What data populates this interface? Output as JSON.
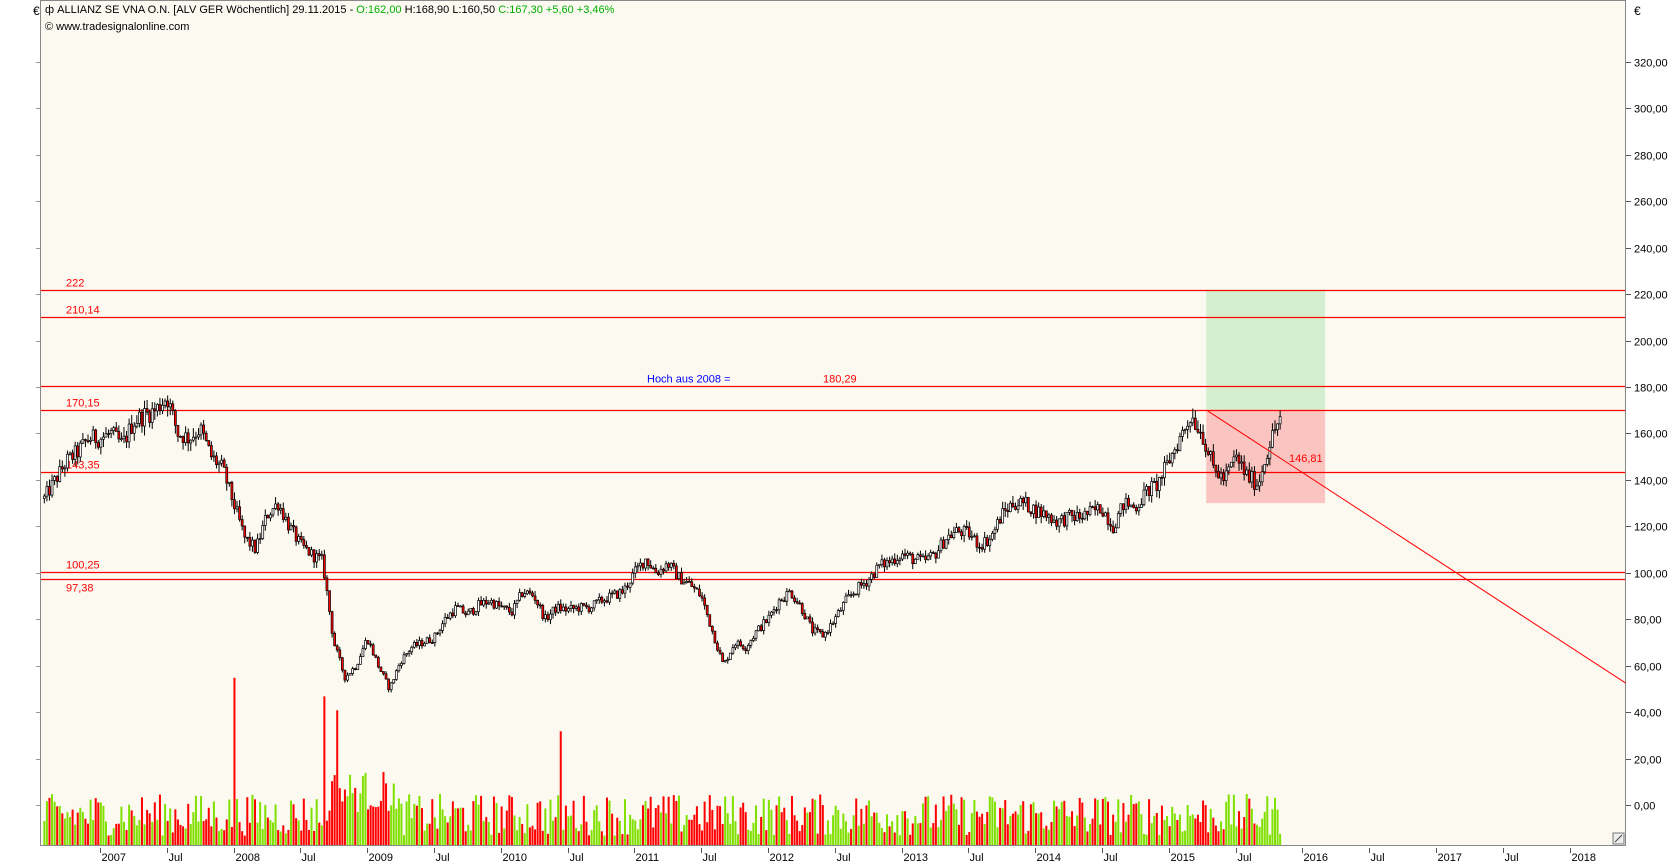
{
  "header": {
    "symbol_icon": "candlestick-icon",
    "title": "ALLIANZ SE VNA O.N. [ALV GER  Wöchentlich] 29.11.2015 - ",
    "open": "O:162,00",
    "high_low": " H:168,90 L:160,50 ",
    "close_change": "C:167,30 +5,60 +3,46%",
    "source_icon": "copyright-icon",
    "source": "www.tradesignalonline.com"
  },
  "axis": {
    "currency_left": "€",
    "currency_right": "€"
  },
  "colors": {
    "background": "#fcf9f1",
    "up_candle": "#ffffff",
    "down_candle": "#ff0000",
    "lines": "#ff0000",
    "note": "#0000ff",
    "target_zone": "#d4efcf",
    "risk_zone": "#fac5c0",
    "volume_up": "#80e000",
    "volume_down": "#ff0000"
  },
  "chart_data": {
    "type": "candlestick",
    "title": "ALLIANZ SE VNA O.N. [ALV GER  Wöchentlich]",
    "x_start": "2006-08",
    "x_end": "2018-05",
    "ylim": [
      -17,
      345
    ],
    "grid": false,
    "y_ticks": [
      "0,00",
      "20,00",
      "40,00",
      "60,00",
      "80,00",
      "100,00",
      "120,00",
      "140,00",
      "160,00",
      "180,00",
      "200,00",
      "220,00",
      "240,00",
      "260,00",
      "280,00",
      "300,00",
      "320,00"
    ],
    "y_tick_values": [
      0,
      20,
      40,
      60,
      80,
      100,
      120,
      140,
      160,
      180,
      200,
      220,
      240,
      260,
      280,
      300,
      320
    ],
    "x_ticks": [
      {
        "label": "2007",
        "t": 2007.0
      },
      {
        "label": "Jul",
        "t": 2007.5
      },
      {
        "label": "2008",
        "t": 2008.0
      },
      {
        "label": "Jul",
        "t": 2008.5
      },
      {
        "label": "2009",
        "t": 2009.0
      },
      {
        "label": "Jul",
        "t": 2009.5
      },
      {
        "label": "2010",
        "t": 2010.0
      },
      {
        "label": "Jul",
        "t": 2010.5
      },
      {
        "label": "2011",
        "t": 2011.0
      },
      {
        "label": "Jul",
        "t": 2011.5
      },
      {
        "label": "2012",
        "t": 2012.0
      },
      {
        "label": "Jul",
        "t": 2012.5
      },
      {
        "label": "2013",
        "t": 2013.0
      },
      {
        "label": "Jul",
        "t": 2013.5
      },
      {
        "label": "2014",
        "t": 2014.0
      },
      {
        "label": "Jul",
        "t": 2014.5
      },
      {
        "label": "2015",
        "t": 2015.0
      },
      {
        "label": "Jul",
        "t": 2015.5
      },
      {
        "label": "2016",
        "t": 2016.0
      },
      {
        "label": "Jul",
        "t": 2016.5
      },
      {
        "label": "2017",
        "t": 2017.0
      },
      {
        "label": "Jul",
        "t": 2017.5
      },
      {
        "label": "2018",
        "t": 2018.0
      }
    ],
    "monthly_close_start": "2006-08",
    "monthly_close": [
      132,
      140,
      148,
      152,
      158,
      158,
      160,
      155,
      165,
      168,
      170,
      176,
      160,
      158,
      162,
      150,
      145,
      130,
      115,
      110,
      125,
      130,
      120,
      112,
      108,
      105,
      70,
      55,
      60,
      72,
      60,
      50,
      62,
      68,
      70,
      72,
      80,
      85,
      82,
      86,
      88,
      85,
      83,
      92,
      90,
      80,
      85,
      84,
      85,
      85,
      88,
      90,
      92,
      100,
      106,
      100,
      104,
      98,
      95,
      90,
      75,
      60,
      70,
      68,
      75,
      80,
      88,
      92,
      85,
      75,
      73,
      80,
      88,
      93,
      97,
      103,
      105,
      108,
      106,
      105,
      108,
      115,
      118,
      117,
      112,
      115,
      125,
      130,
      130,
      127,
      125,
      122,
      124,
      124,
      126,
      128,
      120,
      130,
      128,
      135,
      138,
      148,
      158,
      168,
      160,
      145,
      140,
      150,
      142,
      138,
      155,
      167.3
    ],
    "volume_spikes": [
      {
        "t": 2008.0,
        "value": 55
      },
      {
        "t": 2008.68,
        "value": 47
      },
      {
        "t": 2008.78,
        "value": 31
      },
      {
        "t": 2010.45,
        "value": 32
      }
    ],
    "horizontal_lines": [
      {
        "value": 222,
        "label": "222"
      },
      {
        "value": 210.14,
        "label": "210,14"
      },
      {
        "value": 180.29,
        "label": "180,29",
        "note": "Hoch aus 2008 ="
      },
      {
        "value": 170.15,
        "label": "170,15"
      },
      {
        "value": 143.35,
        "label": "143,35"
      },
      {
        "value": 100.25,
        "label": "100,25"
      },
      {
        "value": 97.38,
        "label": "97,38"
      }
    ],
    "target_zone": {
      "t_start": 2015.28,
      "t_end": 2016.17,
      "low": 170.15,
      "high": 222
    },
    "risk_zone": {
      "t_start": 2015.28,
      "t_end": 2016.17,
      "low": 130,
      "high": 170.15
    },
    "trendline": {
      "t_start": 2015.28,
      "v_start": 170.15,
      "t_end": 2018.42,
      "v_end": 52.5
    },
    "trendline_label": "146,81"
  }
}
